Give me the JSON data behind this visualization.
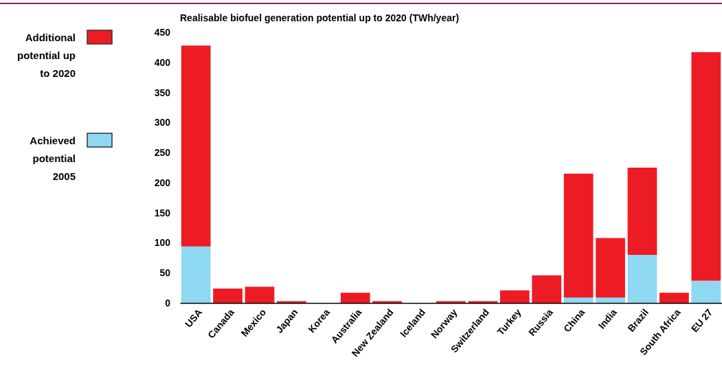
{
  "chart_data": {
    "type": "bar",
    "title": "Realisable biofuel generation potential up to 2020    (TWh/year)",
    "categories": [
      "USA",
      "Canada",
      "Mexico",
      "Japan",
      "Korea",
      "Australia",
      "New Zealand",
      "Iceland",
      "Norway",
      "Switzerland",
      "Turkey",
      "Russia",
      "China",
      "India",
      "Brazil",
      "South Africa",
      "EU 27"
    ],
    "stacked": true,
    "series": [
      {
        "name": "Achieved potential 2005",
        "color": "#8fd8f2",
        "values": [
          94,
          0,
          0,
          0,
          0,
          0,
          0,
          0,
          0,
          0,
          0,
          0,
          9,
          9,
          80,
          0,
          37
        ]
      },
      {
        "name": "Additional potential up to 2020",
        "color": "#ed1c24",
        "values": [
          334,
          24,
          27,
          3,
          0,
          17,
          3,
          0,
          3,
          3,
          21,
          46,
          206,
          99,
          145,
          17,
          380
        ]
      }
    ],
    "ylim": [
      0,
      450
    ],
    "yticks": [
      0,
      50,
      100,
      150,
      200,
      250,
      300,
      350,
      400,
      450
    ],
    "legend": "left"
  }
}
